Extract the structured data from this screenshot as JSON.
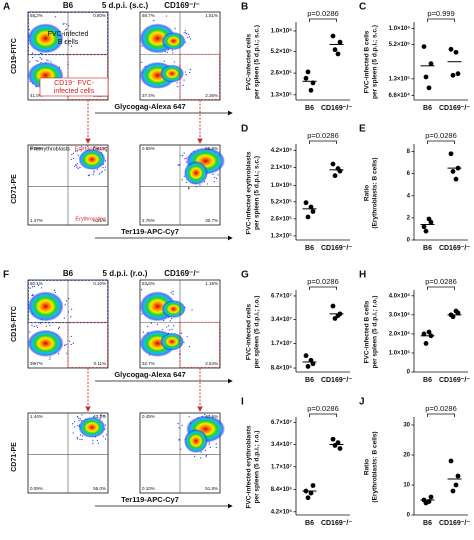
{
  "flow_panels": [
    {
      "letter": "A",
      "headers": [
        "B6",
        "5 d.p.i. (s.c.)",
        "CD169⁻/⁻"
      ],
      "top_y_label": "CD19-FITC",
      "top_x_label": "Glycogag-Alexa 647",
      "bottom_y_label": "CD71-PE",
      "bottom_x_label": "Ter119-APC-Cy7",
      "gate_labels": [
        [
          "FVC-infected",
          "B cells"
        ],
        [
          "CD19⁻ FVC-",
          "infected cells"
        ]
      ],
      "population_labels": [
        "Preerythroblasts",
        "Erythroblasts",
        "Erythrocytes"
      ],
      "quadrants": [
        [
          "58.2%",
          "0.80%",
          "41.0%",
          "0.05%"
        ],
        [
          "58.7%",
          "1.51%",
          "37.4%",
          "2.36%"
        ],
        [
          "0.08%",
          "0.61%",
          "1.47%",
          "0.21%"
        ],
        [
          "0.65%",
          "65.9%",
          "2.76%",
          "30.7%"
        ]
      ]
    },
    {
      "letter": "F",
      "headers": [
        "B6",
        "5 d.p.i. (r.o.)",
        "CD169⁻/⁻"
      ],
      "top_y_label": "CD19-FITC",
      "top_x_label": "Glycogag-Alexa 647",
      "bottom_y_label": "CD71-PE",
      "bottom_x_label": "Ter119-APC-Cy7",
      "quadrants": [
        [
          "60.1%",
          "0.10%",
          "39.7%",
          "0.11%"
        ],
        [
          "63.6%",
          "1.16%",
          "32.7%",
          "2.54%"
        ],
        [
          "1.44%",
          "43.5%",
          "0.09%",
          "55.0%"
        ],
        [
          "0.45%",
          "47.6%",
          "0.10%",
          "51.8%"
        ]
      ]
    }
  ],
  "chart_data": [
    {
      "type": "dot",
      "panel": "B",
      "y_label": [
        "FVC-infected cells",
        "per spleen (5 d.p.i.; s.c.)"
      ],
      "annotation": "p=0.0286",
      "categories": [
        "B6",
        "CD169⁻/⁻"
      ],
      "values": [
        [
          220000,
          190000,
          270000,
          150000
        ],
        [
          850000,
          700000,
          550000,
          480000
        ]
      ],
      "means": [
        200000,
        650000
      ],
      "log_scale": true,
      "ylim": [
        110000,
        1250000
      ],
      "yticks": [
        {
          "value": 130000,
          "label": "1.3×10⁵"
        },
        {
          "value": 260000,
          "label": "2.6×10⁵"
        },
        {
          "value": 520000,
          "label": "5.2×10⁵"
        },
        {
          "value": 1000000,
          "label": "1.0×10⁶"
        }
      ],
      "color": "#000000"
    },
    {
      "type": "dot",
      "panel": "C",
      "y_label": [
        "FVC-infected B cells",
        "per spleen (5 d.p.i.; s.c.)"
      ],
      "annotation": "p=0.999",
      "categories": [
        "B6",
        "CD169⁻/⁻"
      ],
      "values": [
        [
          480000,
          240000,
          140000,
          90000
        ],
        [
          430000,
          160000,
          150000,
          380000
        ]
      ],
      "means": [
        220000,
        260000
      ],
      "log_scale": true,
      "ylim": [
        55000,
        1200000
      ],
      "yticks": [
        {
          "value": 66000,
          "label": "6.6×10⁴"
        },
        {
          "value": 130000,
          "label": "1.3×10⁵"
        },
        {
          "value": 520000,
          "label": "5.2×10⁵"
        },
        {
          "value": 1000000,
          "label": "1.0×10⁶"
        }
      ],
      "color": "#000000"
    },
    {
      "type": "dot",
      "panel": "D",
      "y_label": [
        "FVC-infected erythroblasts",
        "per spleen (5 d.p.i.; s.c.)"
      ],
      "annotation": "p=0.0286",
      "categories": [
        "B6",
        "CD169⁻/⁻"
      ],
      "values": [
        [
          500000,
          350000,
          280000,
          420000
        ],
        [
          2400000,
          1800000,
          1500000,
          2000000
        ]
      ],
      "means": [
        390000,
        1900000
      ],
      "log_scale": true,
      "ylim": [
        110000,
        5000000
      ],
      "yticks": [
        {
          "value": 130000,
          "label": "1.3×10⁵"
        },
        {
          "value": 260000,
          "label": "2.6×10⁵"
        },
        {
          "value": 520000,
          "label": "5.2×10⁵"
        },
        {
          "value": 1000000,
          "label": "1.0×10⁶"
        },
        {
          "value": 2100000,
          "label": "2.1×10⁶"
        },
        {
          "value": 4200000,
          "label": "4.2×10⁶"
        }
      ],
      "color": "#000000"
    },
    {
      "type": "dot",
      "panel": "E",
      "y_label": [
        "Ratio",
        "(Erythroblasts: B cells)"
      ],
      "annotation": "p=0.0286",
      "categories": [
        "B6",
        "CD169⁻/⁻"
      ],
      "values": [
        [
          1.2,
          1.6,
          0.8,
          1.9
        ],
        [
          7.8,
          6.5,
          6.2,
          5.5
        ]
      ],
      "means": [
        1.4,
        6.5
      ],
      "log_scale": false,
      "ylim": [
        0,
        8.5
      ],
      "yticks": [
        0,
        2,
        4,
        6,
        8
      ],
      "color": "#000000"
    },
    {
      "type": "dot",
      "panel": "G",
      "y_label": [
        "FVC-infected cells",
        "per spleen (5 d.p.i.; r.o.)"
      ],
      "annotation": "p=0.0286",
      "categories": [
        "B6",
        "CD169⁻/⁻"
      ],
      "values": [
        [
          12000000,
          9500000,
          8800000,
          10500000
        ],
        [
          50000000,
          40000000,
          35000000,
          38000000
        ]
      ],
      "means": [
        10000000,
        40000000
      ],
      "log_scale": true,
      "ylim": [
        7500000,
        75000000
      ],
      "yticks": [
        {
          "value": 8400000,
          "label": "8.4×10⁶"
        },
        {
          "value": 17000000,
          "label": "1.7×10⁷"
        },
        {
          "value": 34000000,
          "label": "3.4×10⁷"
        },
        {
          "value": 67000000,
          "label": "6.7×10⁷"
        }
      ],
      "color": "#000000"
    },
    {
      "type": "dot",
      "panel": "H",
      "y_label": [
        "FVC-infected B cells",
        "per spleen (5 d.p.i.; r.o.)"
      ],
      "annotation": "p=0.0286",
      "categories": [
        "B6",
        "CD169⁻/⁻"
      ],
      "values": [
        [
          2000000,
          1900000,
          1500000,
          2100000
        ],
        [
          3000000,
          3100000,
          2900000,
          3200000
        ]
      ],
      "means": [
        1900000,
        3000000
      ],
      "log_scale": false,
      "ylim": [
        0,
        4200000
      ],
      "yticks": [
        0,
        {
          "value": 1000000,
          "label": "1.0×10⁶"
        },
        {
          "value": 2000000,
          "label": "2.0×10⁶"
        },
        {
          "value": 3000000,
          "label": "3.0×10⁶"
        },
        {
          "value": 4000000,
          "label": "4.0×10⁶"
        }
      ],
      "color": "#000000"
    },
    {
      "type": "dot",
      "panel": "I",
      "y_label": [
        "FVC-infected erythroblasts",
        "per spleen (5 d.p.i.; r.o.)"
      ],
      "annotation": "p=0.0286",
      "categories": [
        "B6",
        "CD169⁻/⁻"
      ],
      "values": [
        [
          8000000,
          9500000,
          6500000,
          7500000
        ],
        [
          40000000,
          30000000,
          33000000,
          36000000
        ]
      ],
      "means": [
        8000000,
        34000000
      ],
      "log_scale": true,
      "ylim": [
        3800000,
        75000000
      ],
      "yticks": [
        {
          "value": 4200000,
          "label": "4.2×10⁶"
        },
        {
          "value": 8400000,
          "label": "8.4×10⁶"
        },
        {
          "value": 17000000,
          "label": "1.7×10⁷"
        },
        {
          "value": 34000000,
          "label": "3.4×10⁷"
        },
        {
          "value": 67000000,
          "label": "6.7×10⁷"
        }
      ],
      "color": "#000000"
    },
    {
      "type": "dot",
      "panel": "J",
      "y_label": [
        "Ratio",
        "(Erythroblasts: B cells)"
      ],
      "annotation": "p=0.0286",
      "categories": [
        "B6",
        "CD169⁻/⁻"
      ],
      "values": [
        [
          5,
          6,
          4,
          4.5
        ],
        [
          18,
          13,
          8,
          10
        ]
      ],
      "means": [
        5,
        12
      ],
      "log_scale": false,
      "ylim": [
        0,
        32
      ],
      "yticks": [
        0,
        10,
        20,
        30
      ],
      "color": "#000000"
    }
  ]
}
